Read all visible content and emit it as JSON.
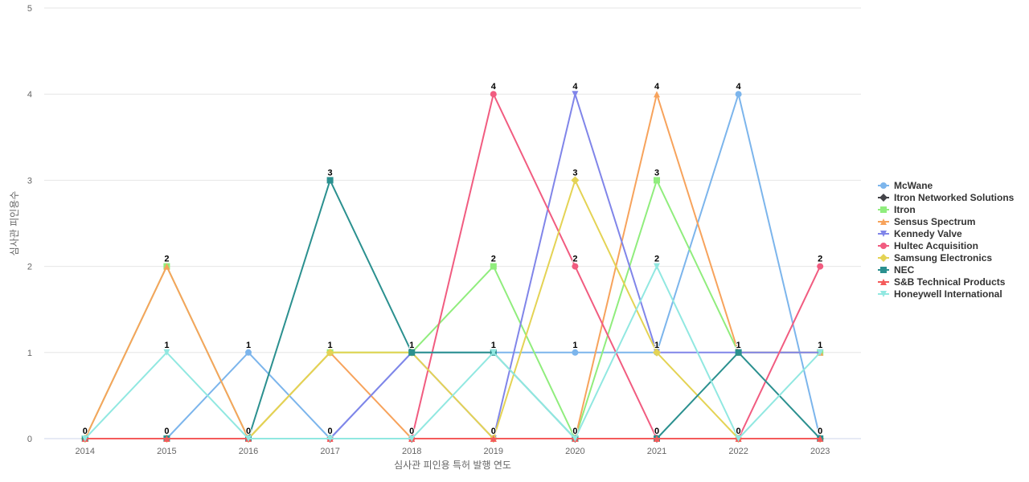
{
  "chart_data": {
    "type": "line",
    "title": "",
    "xlabel": "심사관 피인용 특허 발행 연도",
    "ylabel": "심사관 피인용수",
    "ylim": [
      0,
      5
    ],
    "y_ticks": [
      0,
      1,
      2,
      3,
      4,
      5
    ],
    "grid": true,
    "legend_position": "right",
    "x": [
      "2014",
      "2015",
      "2016",
      "2017",
      "2018",
      "2019",
      "2020",
      "2021",
      "2022",
      "2023"
    ],
    "series": [
      {
        "name": "McWane",
        "color": "#7cb5ec",
        "marker": "circle",
        "values": [
          0,
          0,
          1,
          0,
          1,
          1,
          1,
          1,
          4,
          0
        ]
      },
      {
        "name": "Itron Networked Solutions",
        "color": "#434348",
        "marker": "diamond",
        "values": [
          0,
          0,
          0,
          0,
          0,
          0,
          0,
          0,
          0,
          0
        ]
      },
      {
        "name": "Itron",
        "color": "#90ed7d",
        "marker": "square",
        "values": [
          0,
          2,
          0,
          1,
          1,
          2,
          0,
          3,
          1,
          1
        ]
      },
      {
        "name": "Sensus Spectrum",
        "color": "#f7a35c",
        "marker": "triangle",
        "values": [
          0,
          2,
          0,
          1,
          0,
          0,
          0,
          4,
          1,
          1
        ]
      },
      {
        "name": "Kennedy Valve",
        "color": "#8085e9",
        "marker": "triangle-down",
        "values": [
          0,
          0,
          0,
          0,
          1,
          0,
          4,
          1,
          1,
          1
        ]
      },
      {
        "name": "Hultec Acquisition",
        "color": "#f15c80",
        "marker": "circle",
        "values": [
          0,
          0,
          0,
          0,
          0,
          4,
          2,
          0,
          0,
          2
        ]
      },
      {
        "name": "Samsung Electronics",
        "color": "#e4d354",
        "marker": "diamond",
        "values": [
          0,
          0,
          0,
          1,
          1,
          0,
          3,
          1,
          0,
          0
        ]
      },
      {
        "name": "NEC",
        "color": "#2b908f",
        "marker": "square",
        "values": [
          0,
          0,
          0,
          3,
          1,
          1,
          0,
          0,
          1,
          0
        ]
      },
      {
        "name": "S&B Technical Products",
        "color": "#f45b5b",
        "marker": "triangle",
        "values": [
          0,
          0,
          0,
          0,
          0,
          0,
          0,
          0,
          0,
          0
        ]
      },
      {
        "name": "Honeywell International",
        "color": "#91e8e1",
        "marker": "triangle-down",
        "values": [
          0,
          1,
          0,
          0,
          0,
          1,
          0,
          2,
          0,
          1
        ]
      }
    ],
    "point_labels": [
      {
        "x": "2014",
        "y": 0,
        "text": "0"
      },
      {
        "x": "2015",
        "y": 2,
        "text": "2"
      },
      {
        "x": "2015",
        "y": 1,
        "text": "1"
      },
      {
        "x": "2015",
        "y": 0,
        "text": "0"
      },
      {
        "x": "2016",
        "y": 1,
        "text": "1"
      },
      {
        "x": "2016",
        "y": 0,
        "text": "0"
      },
      {
        "x": "2017",
        "y": 3,
        "text": "3"
      },
      {
        "x": "2017",
        "y": 1,
        "text": "1"
      },
      {
        "x": "2017",
        "y": 0,
        "text": "0"
      },
      {
        "x": "2018",
        "y": 1,
        "text": "1"
      },
      {
        "x": "2018",
        "y": 0,
        "text": "0"
      },
      {
        "x": "2019",
        "y": 4,
        "text": "4"
      },
      {
        "x": "2019",
        "y": 2,
        "text": "2"
      },
      {
        "x": "2019",
        "y": 1,
        "text": "1"
      },
      {
        "x": "2019",
        "y": 0,
        "text": "0"
      },
      {
        "x": "2020",
        "y": 4,
        "text": "4"
      },
      {
        "x": "2020",
        "y": 3,
        "text": "3"
      },
      {
        "x": "2020",
        "y": 2,
        "text": "2"
      },
      {
        "x": "2020",
        "y": 1,
        "text": "1"
      },
      {
        "x": "2020",
        "y": 0,
        "text": "0"
      },
      {
        "x": "2021",
        "y": 4,
        "text": "4"
      },
      {
        "x": "2021",
        "y": 3,
        "text": "3"
      },
      {
        "x": "2021",
        "y": 2,
        "text": "2"
      },
      {
        "x": "2021",
        "y": 1,
        "text": "1"
      },
      {
        "x": "2021",
        "y": 0,
        "text": "0"
      },
      {
        "x": "2022",
        "y": 4,
        "text": "4"
      },
      {
        "x": "2022",
        "y": 1,
        "text": "1"
      },
      {
        "x": "2022",
        "y": 0,
        "text": "0"
      },
      {
        "x": "2023",
        "y": 2,
        "text": "2"
      },
      {
        "x": "2023",
        "y": 1,
        "text": "1"
      },
      {
        "x": "2023",
        "y": 0,
        "text": "0"
      }
    ]
  }
}
